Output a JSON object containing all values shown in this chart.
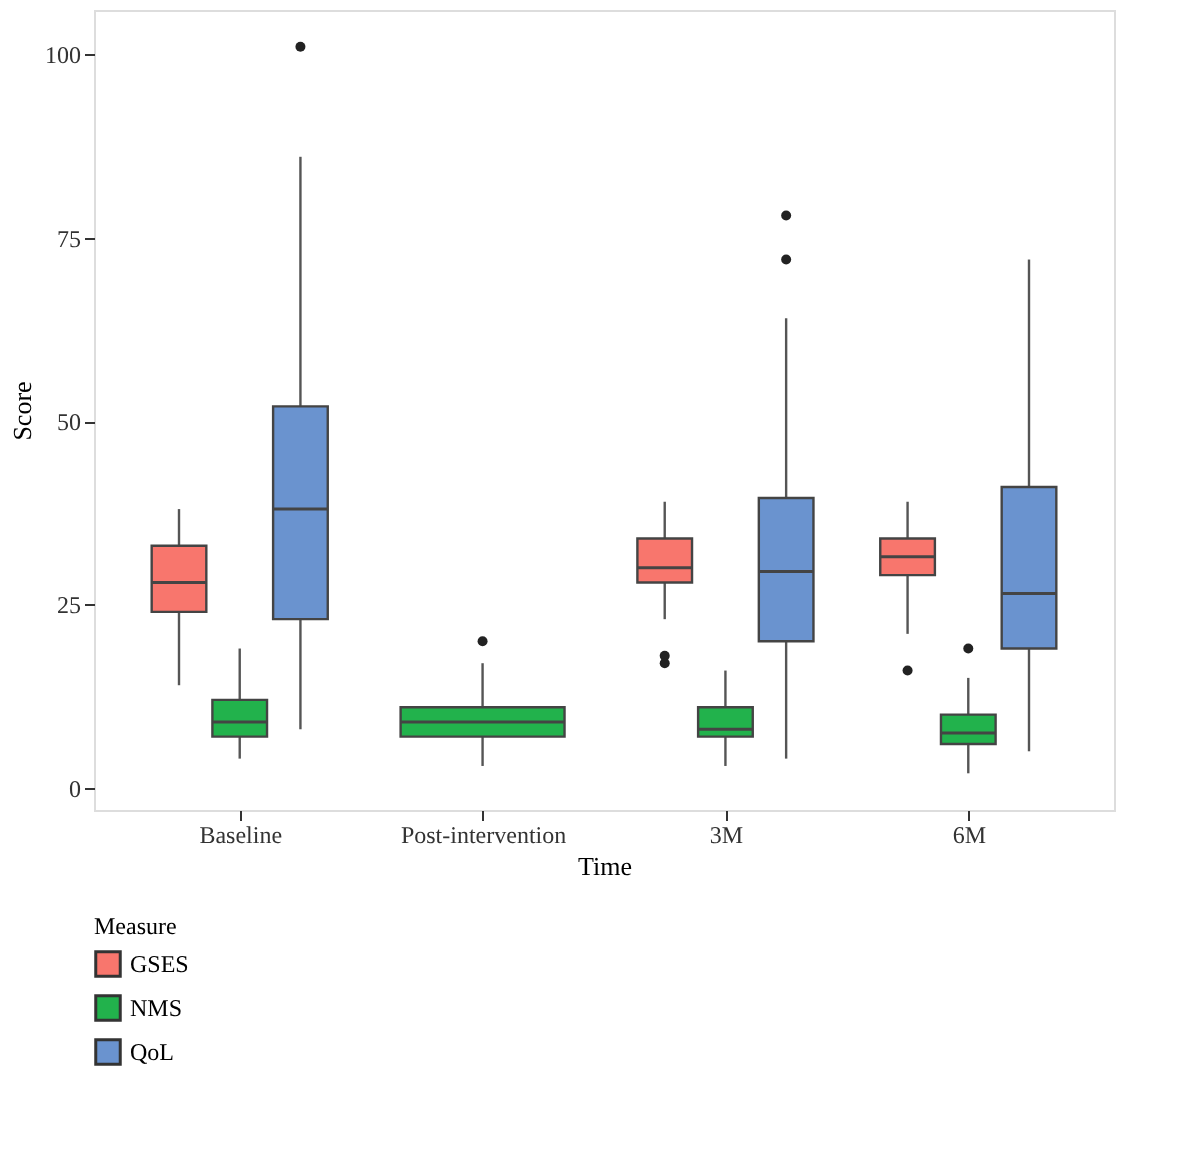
{
  "chart_data": {
    "type": "box",
    "xlabel": "Time",
    "ylabel": "Score",
    "legend_title": "Measure",
    "categories": [
      "Baseline",
      "Post-intervention",
      "3M",
      "6M"
    ],
    "ylim": [
      -3,
      106
    ],
    "yticks": [
      0,
      25,
      50,
      75,
      100
    ],
    "grid": false,
    "legend": "bottom left",
    "series": [
      {
        "name": "GSES",
        "color": "#f8766d",
        "boxes": [
          {
            "low": 14,
            "q1": 24,
            "median": 28,
            "q3": 33,
            "high": 38
          },
          null,
          {
            "low": 23,
            "q1": 28,
            "median": 30,
            "q3": 34,
            "high": 39,
            "outliers": [
              18,
              17
            ]
          },
          {
            "low": 21,
            "q1": 29,
            "median": 31.5,
            "q3": 34,
            "high": 39,
            "outliers": [
              16
            ]
          }
        ]
      },
      {
        "name": "NMS",
        "color": "#22b24c",
        "boxes": [
          {
            "low": 4,
            "q1": 7,
            "median": 9,
            "q3": 12,
            "high": 19
          },
          {
            "low": 3,
            "q1": 7,
            "median": 9,
            "q3": 11,
            "high": 17,
            "outliers": [
              20
            ]
          },
          {
            "low": 3,
            "q1": 7,
            "median": 8,
            "q3": 11,
            "high": 16
          },
          {
            "low": 2,
            "q1": 6,
            "median": 7.5,
            "q3": 10,
            "high": 15,
            "outliers": [
              19
            ]
          }
        ]
      },
      {
        "name": "QoL",
        "color": "#6a93cf",
        "boxes": [
          {
            "low": 8,
            "q1": 23,
            "median": 38,
            "q3": 52,
            "high": 86,
            "outliers": [
              101
            ]
          },
          null,
          {
            "low": 4,
            "q1": 20,
            "median": 29.5,
            "q3": 39.5,
            "high": 64,
            "outliers": [
              78,
              72
            ]
          },
          {
            "low": 5,
            "q1": 19,
            "median": 26.5,
            "q3": 41,
            "high": 72
          }
        ]
      }
    ]
  }
}
